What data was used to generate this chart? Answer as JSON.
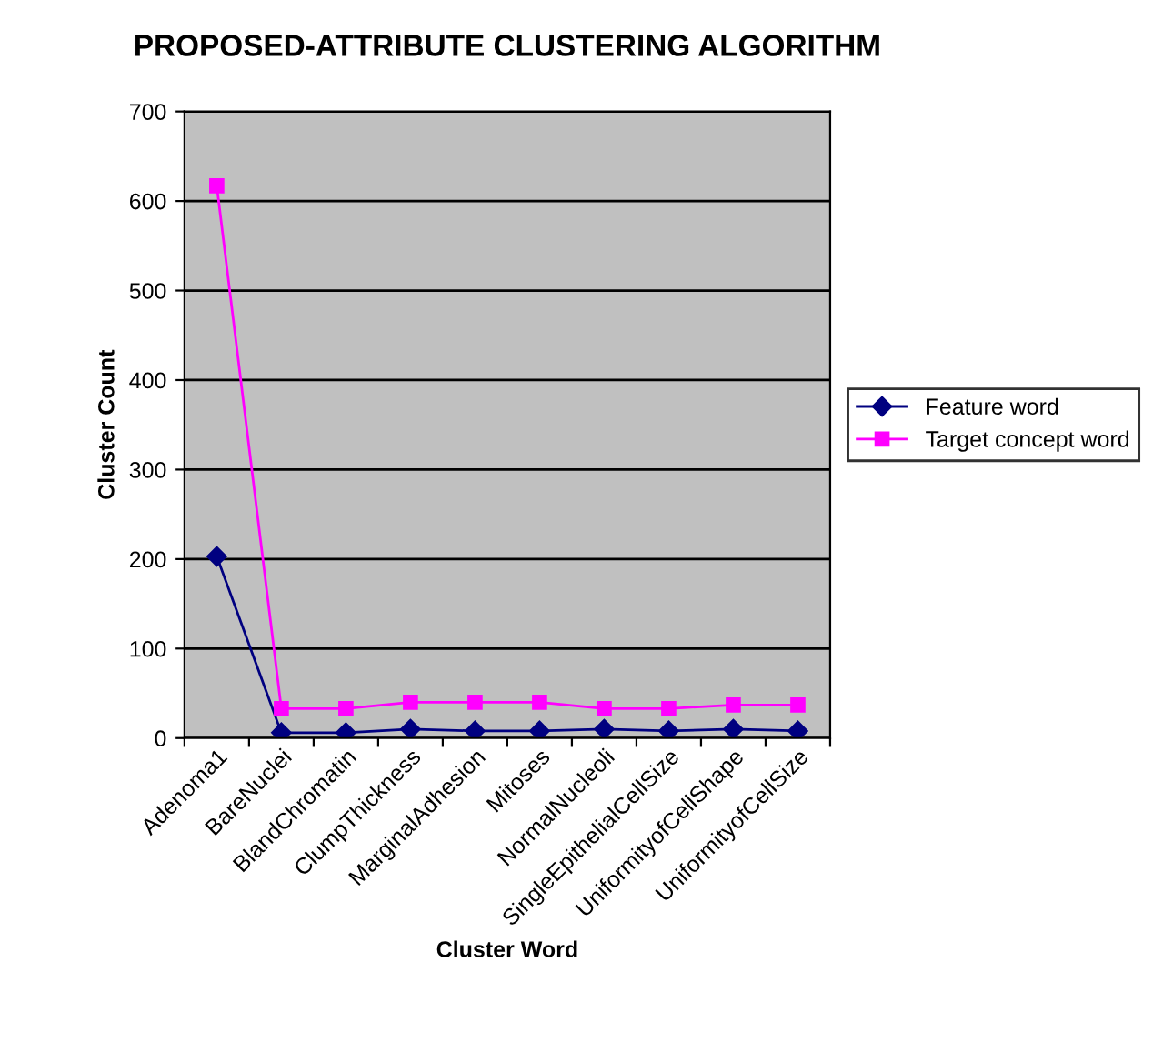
{
  "chart_data": {
    "type": "line",
    "title": "PROPOSED-ATTRIBUTE CLUSTERING ALGORITHM",
    "xlabel": "Cluster Word",
    "ylabel": "Cluster Count",
    "categories": [
      "Adenoma1",
      "BareNuclei",
      "BlandChromatin",
      "ClumpThickness",
      "MarginalAdhesion",
      "Mitoses",
      "NormalNucleoli",
      "SingleEpithelialCellSize",
      "UniformityofCellShape",
      "UniformityofCellSize"
    ],
    "series": [
      {
        "name": "Feature word",
        "color": "#000080",
        "marker": "diamond",
        "values": [
          203,
          6,
          6,
          10,
          8,
          8,
          10,
          8,
          10,
          8
        ]
      },
      {
        "name": "Target concept word",
        "color": "#ff00ff",
        "marker": "square",
        "values": [
          617,
          33,
          33,
          40,
          40,
          40,
          33,
          33,
          37,
          37
        ]
      }
    ],
    "ylim": [
      0,
      700
    ],
    "yticks": [
      0,
      100,
      200,
      300,
      400,
      500,
      600,
      700
    ],
    "grid": "y",
    "legend": "right"
  }
}
